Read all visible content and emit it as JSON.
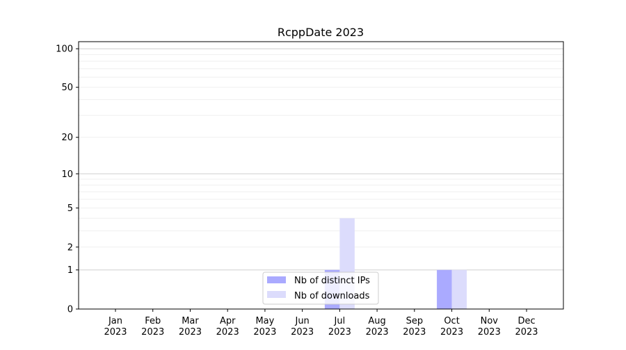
{
  "chart_data": {
    "type": "bar",
    "title": "RcppDate 2023",
    "xlabel": "",
    "ylabel": "",
    "yscale": "log(1+y)",
    "ylim": [
      0,
      113
    ],
    "grid": true,
    "legend_placement": "lower-center",
    "categories": [
      [
        "Jan",
        "2023"
      ],
      [
        "Feb",
        "2023"
      ],
      [
        "Mar",
        "2023"
      ],
      [
        "Apr",
        "2023"
      ],
      [
        "May",
        "2023"
      ],
      [
        "Jun",
        "2023"
      ],
      [
        "Jul",
        "2023"
      ],
      [
        "Aug",
        "2023"
      ],
      [
        "Sep",
        "2023"
      ],
      [
        "Oct",
        "2023"
      ],
      [
        "Nov",
        "2023"
      ],
      [
        "Dec",
        "2023"
      ]
    ],
    "yticks": [
      0,
      1,
      2,
      5,
      10,
      20,
      50,
      100
    ],
    "ytick_labels": [
      "0",
      "1",
      "2",
      "5",
      "10",
      "20",
      "50",
      "100"
    ],
    "series": [
      {
        "name": "Nb of distinct IPs",
        "color": "#aaaaff",
        "values": [
          0,
          0,
          0,
          0,
          0,
          0,
          1,
          0,
          0,
          1,
          0,
          0
        ]
      },
      {
        "name": "Nb of downloads",
        "color": "#dcdcfc",
        "values": [
          0,
          0,
          0,
          0,
          0,
          0,
          4,
          0,
          0,
          1,
          0,
          0
        ]
      }
    ]
  }
}
